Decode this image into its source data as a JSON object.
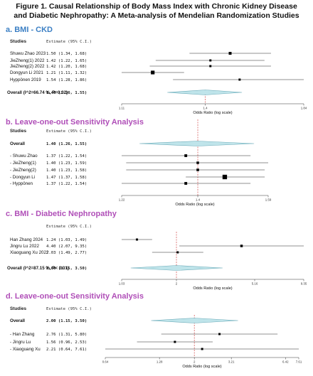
{
  "figure": {
    "title_line1": "Figure 1. Causal Relationship of Body Mass Index with Chronic Kidney Disease",
    "title_line2": "and Diabetic Nephropathy: A Meta-analysis of Mendelian Randomization Studies"
  },
  "colors": {
    "section_ckd": "#3b7fc4",
    "section_sensitivity": "#b04fb8",
    "diamond_fill": "#bfe4ea",
    "diamond_stroke": "#6aaab8",
    "reference_line": "#d24a4a",
    "marker": "#000000"
  },
  "chart_data": [
    {
      "type": "forest",
      "section_label": "a. BMI - CKD",
      "col_study": "Studies",
      "col_estimate": "Estimate (95% C.I.)",
      "xlabel": "Odds Ratio (log scale)",
      "log_scale": true,
      "xlim": [
        1.11,
        1.84
      ],
      "xticks": [
        "1.11",
        "1.4",
        "1.84"
      ],
      "reference_value": 1.4,
      "rows": [
        {
          "study": "Shuwu Zhao 2023",
          "estimate_text": "1.50 (1.34, 1.68)",
          "or": 1.5,
          "lower": 1.34,
          "upper": 1.68
        },
        {
          "study": "JieZheng(1) 2022",
          "estimate_text": "1.42 (1.22, 1.65)",
          "or": 1.42,
          "lower": 1.22,
          "upper": 1.65
        },
        {
          "study": "JieZheng(2) 2022",
          "estimate_text": "1.42 (1.20, 1.68)",
          "or": 1.42,
          "lower": 1.2,
          "upper": 1.68
        },
        {
          "study": "Dongyun Li 2021",
          "estimate_text": "1.21 (1.11, 1.32)",
          "or": 1.21,
          "lower": 1.11,
          "upper": 1.32
        },
        {
          "study": "Hyppönen 2019",
          "estimate_text": "1.54 (1.28, 1.86)",
          "or": 1.54,
          "lower": 1.28,
          "upper": 1.86
        }
      ],
      "overall": {
        "label": "Overall (I^2=66.74 %, P=0.02)",
        "estimate_text": "1.40 (1.26, 1.55)",
        "or": 1.4,
        "lower": 1.26,
        "upper": 1.55
      }
    },
    {
      "type": "forest",
      "section_label": "b. Leave-one-out Sensitivity Analysis",
      "col_study": "Studies",
      "col_estimate": "Estimate (95% C.I.)",
      "xlabel": "Odds Ratio (log scale)",
      "log_scale": true,
      "xlim": [
        1.22,
        1.59
      ],
      "xticks": [
        "1.22",
        "1.4",
        "1.59"
      ],
      "reference_value": 1.4,
      "overall": {
        "label": "Overall",
        "estimate_text": "1.40 (1.26, 1.55)",
        "or": 1.4,
        "lower": 1.26,
        "upper": 1.55
      },
      "rows": [
        {
          "study": "- Shuwu Zhao",
          "estimate_text": "1.37 (1.22, 1.54)",
          "or": 1.37,
          "lower": 1.22,
          "upper": 1.54
        },
        {
          "study": "- JieZheng(1)",
          "estimate_text": "1.40 (1.23, 1.59)",
          "or": 1.4,
          "lower": 1.23,
          "upper": 1.59
        },
        {
          "study": "- JieZheng(2)",
          "estimate_text": "1.40 (1.23, 1.58)",
          "or": 1.4,
          "lower": 1.23,
          "upper": 1.58
        },
        {
          "study": "- Dongyun Li",
          "estimate_text": "1.47 (1.37, 1.58)",
          "or": 1.47,
          "lower": 1.37,
          "upper": 1.58
        },
        {
          "study": "- Hyppönen",
          "estimate_text": "1.37 (1.22, 1.54)",
          "or": 1.37,
          "lower": 1.22,
          "upper": 1.54
        }
      ]
    },
    {
      "type": "forest",
      "section_label": "c. BMI - Diabetic Nephropathy",
      "col_study": "",
      "col_estimate": "Estimate (95% C.I.)",
      "xlabel": "Odds Ratio (log scale)",
      "log_scale": true,
      "xlim": [
        1.03,
        9.35
      ],
      "xticks": [
        "1.03",
        "2",
        "5.16",
        "9.35"
      ],
      "reference_value": 2,
      "rows": [
        {
          "study": "Han Zhang 2024",
          "estimate_text": "1.24 (1.03, 1.49)",
          "or": 1.24,
          "lower": 1.03,
          "upper": 1.49
        },
        {
          "study": "Jingru Lu 2022",
          "estimate_text": "4.40 (2.07, 9.35)",
          "or": 4.4,
          "lower": 2.07,
          "upper": 9.35
        },
        {
          "study": "Xiaoguang Xu 2022",
          "estimate_text": "2.03 (1.49, 2.77)",
          "or": 2.03,
          "lower": 1.49,
          "upper": 2.77
        }
      ],
      "overall": {
        "label": "Overall (I^2=87.15 %, P< 0.01)",
        "estimate_text": "2.00 (1.15, 3.50)",
        "or": 2.0,
        "lower": 1.15,
        "upper": 3.5
      }
    },
    {
      "type": "forest",
      "section_label": "d. Leave-one-out Sensitivity Analysis",
      "col_study": "Studies",
      "col_estimate": "Estimate (95% C.I.)",
      "xlabel": "Odds Ratio (log scale)",
      "log_scale": true,
      "xlim": [
        0.64,
        7.61
      ],
      "xticks": [
        "0.64",
        "1.28",
        "2",
        "3.21",
        "6.42",
        "7.61"
      ],
      "reference_value": 2,
      "overall": {
        "label": "Overall",
        "estimate_text": "2.00 (1.15, 3.50)",
        "or": 2.0,
        "lower": 1.15,
        "upper": 3.5
      },
      "rows": [
        {
          "study": "- Han Zhang",
          "estimate_text": "2.76 (1.31, 5.80)",
          "or": 2.76,
          "lower": 1.31,
          "upper": 5.8
        },
        {
          "study": "- Jingru Lu",
          "estimate_text": "1.56 (0.96, 2.53)",
          "or": 1.56,
          "lower": 0.96,
          "upper": 2.53
        },
        {
          "study": "- Xiaoguang Xu",
          "estimate_text": "2.21 (0.64, 7.61)",
          "or": 2.21,
          "lower": 0.64,
          "upper": 7.61
        }
      ]
    }
  ]
}
